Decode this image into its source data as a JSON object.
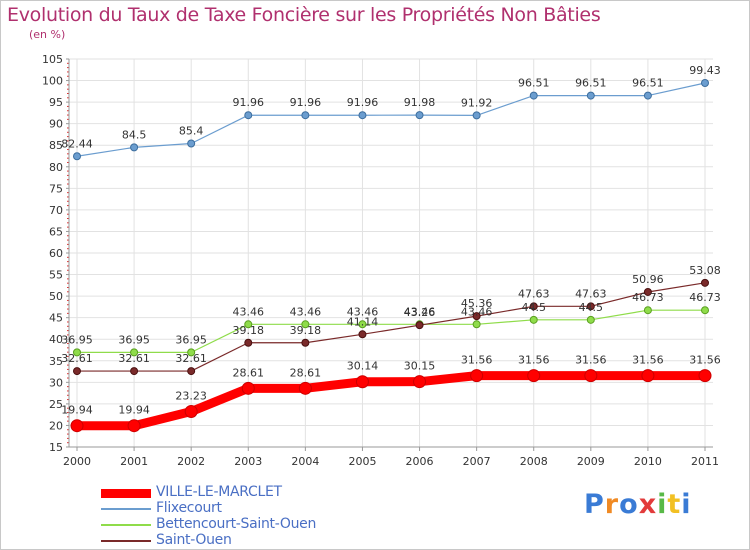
{
  "title": "Evolution du Taux de Taxe Foncière sur les Propriétés Non Bâties",
  "subtitle": "(en %)",
  "logo_text": "Proxiti",
  "chart_data": {
    "type": "line",
    "title": "Evolution du Taux de Taxe Foncière sur les Propriétés Non Bâties",
    "ylabel": "(en %)",
    "xlabel": "",
    "x": [
      "2000",
      "2001",
      "2002",
      "2003",
      "2004",
      "2005",
      "2006",
      "2007",
      "2008",
      "2009",
      "2010",
      "2011"
    ],
    "ylim": [
      15,
      105
    ],
    "yticks": [
      "15",
      "20",
      "25",
      "30",
      "35",
      "40",
      "45",
      "50",
      "55",
      "60",
      "65",
      "70",
      "75",
      "80",
      "85",
      "90",
      "95",
      "100",
      "105"
    ],
    "grid": true,
    "legend_position": "bottom-left",
    "series": [
      {
        "name": "VILLE-LE-MARCLET",
        "color": "#ff0000",
        "values": [
          19.94,
          19.94,
          23.23,
          28.61,
          28.61,
          30.14,
          30.15,
          31.56,
          31.56,
          31.56,
          31.56,
          31.56
        ],
        "labels": [
          "19.94",
          "19.94",
          "23.23",
          "28.61",
          "28.61",
          "30.14",
          "30.15",
          "31.56",
          "31.56",
          "31.56",
          "31.56",
          "31.56"
        ]
      },
      {
        "name": "Flixecourt",
        "color": "#6b9dcf",
        "values": [
          82.44,
          84.5,
          85.4,
          91.96,
          91.96,
          91.96,
          91.98,
          91.92,
          96.51,
          96.51,
          96.51,
          99.43
        ],
        "labels": [
          "82.44",
          "84.5",
          "85.4",
          "91.96",
          "91.96",
          "91.96",
          "91.98",
          "91.92",
          "96.51",
          "96.51",
          "96.51",
          "99.43"
        ]
      },
      {
        "name": "Bettencourt-Saint-Ouen",
        "color": "#8fdc4a",
        "values": [
          36.95,
          36.95,
          36.95,
          43.46,
          43.46,
          43.46,
          43.46,
          43.46,
          44.5,
          44.5,
          46.73,
          46.73
        ],
        "labels": [
          "36.95",
          "36.95",
          "36.95",
          "43.46",
          "43.46",
          "43.46",
          "43.46",
          "43.46",
          "44.5",
          "44.5",
          "46.73",
          "46.73"
        ]
      },
      {
        "name": "Saint-Ouen",
        "color": "#7a2a2a",
        "values": [
          32.61,
          32.61,
          32.61,
          39.18,
          39.18,
          41.14,
          43.26,
          45.36,
          47.63,
          47.63,
          50.96,
          53.08
        ],
        "labels": [
          "32.61",
          "32.61",
          "32.61",
          "39.18",
          "39.18",
          "41.14",
          "43.26",
          "45.36",
          "47.63",
          "47.63",
          "50.96",
          "53.08"
        ]
      }
    ]
  }
}
